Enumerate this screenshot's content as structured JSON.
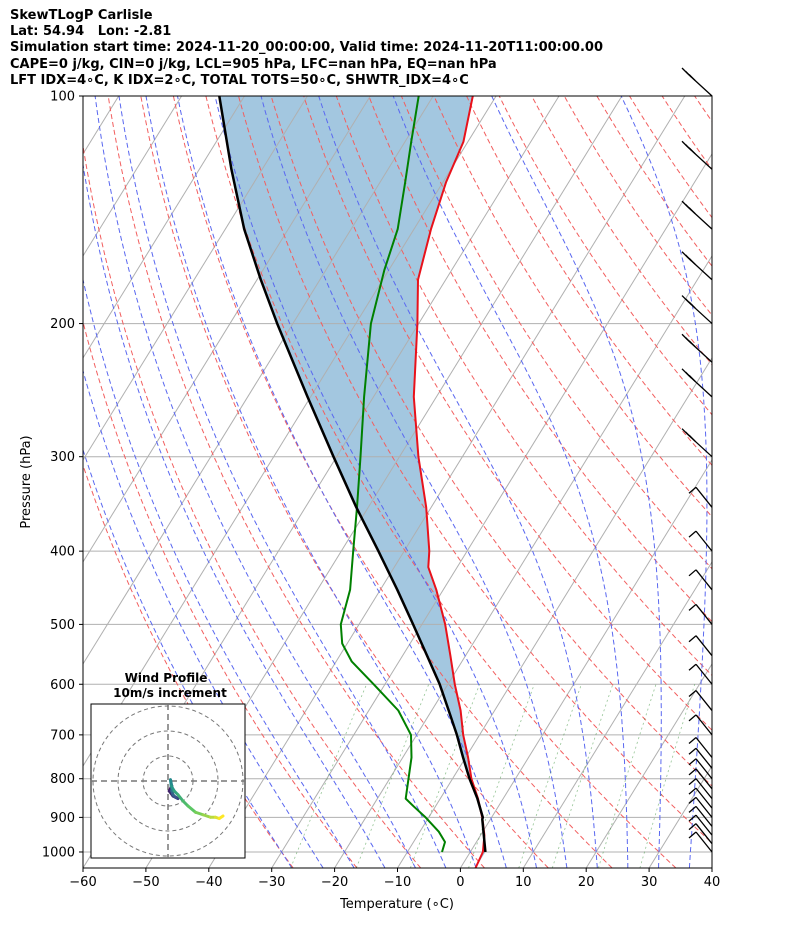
{
  "header": {
    "lines": [
      "SkewTLogP Carlisle",
      "Lat: 54.94   Lon: -2.81",
      "Simulation start time: 2024-11-20_00:00:00, Valid time: 2024-11-20T11:00:00.00",
      "CAPE=0 j/kg, CIN=0 j/kg, LCL=905 hPa, LFC=nan hPa, EQ=nan hPa",
      "LFT IDX=4∘C, K IDX=2∘C, TOTAL TOTS=50∘C, SHWTR_IDX=4∘C"
    ]
  },
  "chart_data": {
    "type": "line",
    "chart_kind": "skew-T log-P",
    "xlabel": "Temperature (∘C)",
    "ylabel": "Pressure (hPa)",
    "xlim": [
      -60,
      40
    ],
    "ylim": [
      1050,
      100
    ],
    "y_scale": "log",
    "x_ticks": [
      "−60",
      "−50",
      "−40",
      "−30",
      "−20",
      "−10",
      "0",
      "10",
      "20",
      "30",
      "40"
    ],
    "y_ticks": [
      "100",
      "200",
      "300",
      "400",
      "500",
      "600",
      "700",
      "800",
      "900",
      "1000"
    ],
    "grid": true,
    "series": [
      {
        "role": "temperature",
        "color": "#e8121b",
        "points": [
          [
            1050,
            2.4
          ],
          [
            1000,
            2.0
          ],
          [
            950,
            0.6
          ],
          [
            900,
            -1.5
          ],
          [
            850,
            -4.0
          ],
          [
            800,
            -7.0
          ],
          [
            750,
            -9.6
          ],
          [
            700,
            -12.6
          ],
          [
            650,
            -15.4
          ],
          [
            600,
            -18.9
          ],
          [
            550,
            -22.4
          ],
          [
            500,
            -26.3
          ],
          [
            450,
            -31.1
          ],
          [
            420,
            -34.6
          ],
          [
            400,
            -36.0
          ],
          [
            350,
            -40.8
          ],
          [
            300,
            -47.0
          ],
          [
            250,
            -53.6
          ],
          [
            200,
            -60.2
          ],
          [
            175,
            -64.4
          ],
          [
            150,
            -67.3
          ],
          [
            130,
            -69.5
          ],
          [
            115,
            -70.7
          ],
          [
            100,
            -73.7
          ]
        ]
      },
      {
        "role": "dewpoint",
        "color": "#008000",
        "points": [
          [
            1000,
            -4.5
          ],
          [
            970,
            -5.0
          ],
          [
            940,
            -7.0
          ],
          [
            900,
            -10.5
          ],
          [
            870,
            -13.5
          ],
          [
            850,
            -15.5
          ],
          [
            800,
            -17.0
          ],
          [
            750,
            -18.6
          ],
          [
            700,
            -20.9
          ],
          [
            650,
            -25.3
          ],
          [
            600,
            -31.8
          ],
          [
            560,
            -37.5
          ],
          [
            530,
            -40.8
          ],
          [
            500,
            -42.9
          ],
          [
            450,
            -44.8
          ],
          [
            400,
            -48.1
          ],
          [
            350,
            -51.8
          ],
          [
            300,
            -56.2
          ],
          [
            250,
            -61.5
          ],
          [
            200,
            -67.6
          ],
          [
            170,
            -70.7
          ],
          [
            150,
            -72.6
          ],
          [
            130,
            -76.0
          ],
          [
            115,
            -79.0
          ],
          [
            100,
            -82.3
          ]
        ]
      },
      {
        "role": "parcel",
        "color": "#000000",
        "points": [
          [
            1000,
            2.4
          ],
          [
            905,
            -1.3
          ],
          [
            900,
            -1.4
          ],
          [
            850,
            -4.1
          ],
          [
            800,
            -7.3
          ],
          [
            750,
            -10.4
          ],
          [
            700,
            -13.6
          ],
          [
            650,
            -17.3
          ],
          [
            600,
            -21.3
          ],
          [
            550,
            -26.1
          ],
          [
            500,
            -31.4
          ],
          [
            450,
            -37.3
          ],
          [
            400,
            -44.1
          ],
          [
            350,
            -51.9
          ],
          [
            300,
            -60.5
          ],
          [
            250,
            -70.5
          ],
          [
            200,
            -82.5
          ],
          [
            175,
            -89.4
          ],
          [
            150,
            -97.0
          ],
          [
            125,
            -104.9
          ],
          [
            100,
            -114.0
          ]
        ]
      }
    ],
    "wind_barbs_levels_hPa": [
      1000,
      975,
      950,
      925,
      900,
      875,
      850,
      825,
      800,
      775,
      750,
      700,
      650,
      600,
      550,
      500,
      450,
      400,
      350,
      300,
      250,
      225,
      200,
      175,
      150,
      125,
      100
    ],
    "inset": {
      "title_line1": "Wind Profile",
      "title_line2": "10m/s increment",
      "hodograph_uv": [
        [
          1.5,
          -2.0
        ],
        [
          0.5,
          -4.0
        ],
        [
          2.0,
          -6.0
        ],
        [
          4.0,
          -7.0
        ],
        [
          3.0,
          -6.5
        ],
        [
          2.0,
          -5.5
        ],
        [
          1.5,
          -4.0
        ],
        [
          1.5,
          -2.0
        ],
        [
          1.0,
          0.5
        ],
        [
          1.3,
          -2.0
        ],
        [
          2.5,
          -4.0
        ],
        [
          4.0,
          -5.5
        ],
        [
          6.0,
          -8.0
        ],
        [
          8.0,
          -10.0
        ],
        [
          11.0,
          -12.5
        ],
        [
          14.0,
          -13.5
        ],
        [
          17.0,
          -14.5
        ],
        [
          19.0,
          -14.5
        ],
        [
          20.5,
          -15.0
        ],
        [
          22.0,
          -14.0
        ]
      ]
    }
  }
}
